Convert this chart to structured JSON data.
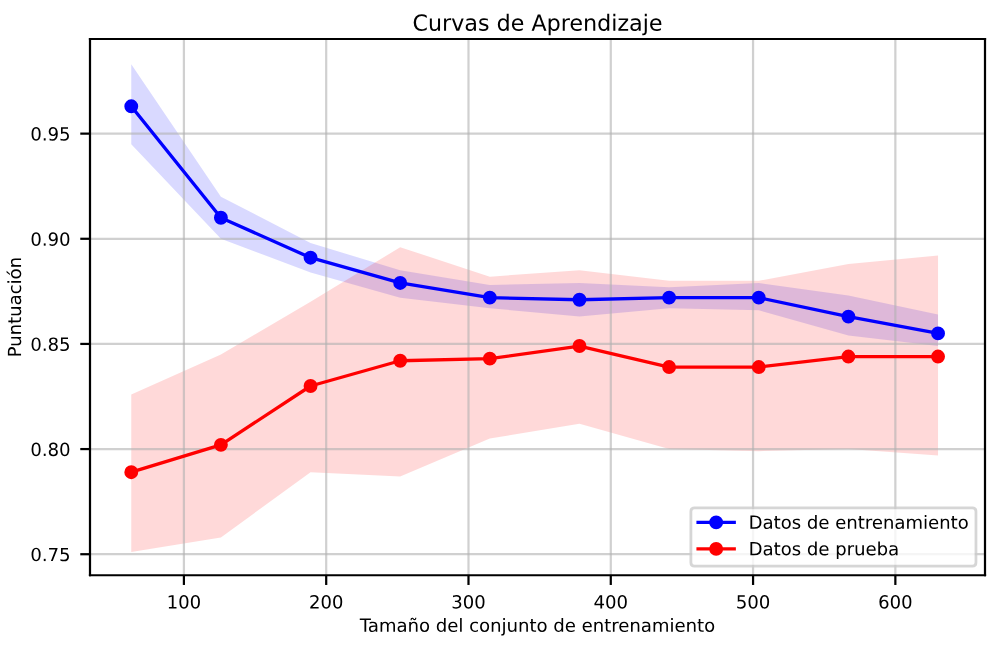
{
  "chart_data": {
    "type": "line",
    "title": "Curvas de Aprendizaje",
    "xlabel": "Tamaño del conjunto de entrenamiento",
    "ylabel": "Puntuación",
    "x": [
      63,
      126,
      189,
      252,
      315,
      378,
      441,
      504,
      567,
      630
    ],
    "series": [
      {
        "name": "Datos de entrenamiento",
        "color": "#0000ff",
        "values": [
          0.963,
          0.91,
          0.891,
          0.879,
          0.872,
          0.871,
          0.872,
          0.872,
          0.863,
          0.855
        ],
        "lower": [
          0.945,
          0.9,
          0.884,
          0.872,
          0.867,
          0.863,
          0.867,
          0.866,
          0.854,
          0.849
        ],
        "upper": [
          0.983,
          0.92,
          0.898,
          0.885,
          0.878,
          0.879,
          0.877,
          0.879,
          0.873,
          0.864
        ]
      },
      {
        "name": "Datos de prueba",
        "color": "#ff0000",
        "values": [
          0.789,
          0.802,
          0.83,
          0.842,
          0.843,
          0.849,
          0.839,
          0.839,
          0.844,
          0.844
        ],
        "lower": [
          0.751,
          0.758,
          0.789,
          0.787,
          0.805,
          0.812,
          0.8,
          0.799,
          0.8,
          0.797
        ],
        "upper": [
          0.826,
          0.845,
          0.87,
          0.896,
          0.882,
          0.885,
          0.88,
          0.88,
          0.888,
          0.892
        ]
      }
    ],
    "xlim": [
      34,
      663
    ],
    "ylim": [
      0.74,
      0.995
    ],
    "xticks": [
      100,
      200,
      300,
      400,
      500,
      600
    ],
    "yticks": [
      {
        "value": 0.75,
        "label": "0.75"
      },
      {
        "value": 0.8,
        "label": "0.80"
      },
      {
        "value": 0.85,
        "label": "0.85"
      },
      {
        "value": 0.9,
        "label": "0.90"
      },
      {
        "value": 0.95,
        "label": "0.95"
      }
    ],
    "grid": true,
    "legend": "lower right",
    "marker": "circle",
    "line_style": "solid"
  }
}
